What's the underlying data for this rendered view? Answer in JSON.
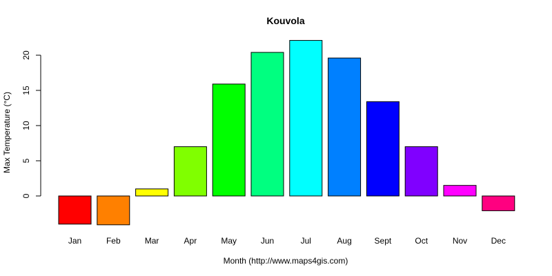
{
  "chart_data": {
    "type": "bar",
    "title": "Kouvola",
    "xlabel": "Month (http://www.maps4gis.com)",
    "ylabel": "Max Temperature (°C)",
    "categories": [
      "Jan",
      "Feb",
      "Mar",
      "Apr",
      "May",
      "Jun",
      "Jul",
      "Aug",
      "Sept",
      "Oct",
      "Nov",
      "Dec"
    ],
    "values": [
      -4.0,
      -4.1,
      1.0,
      7.0,
      15.9,
      20.4,
      22.1,
      19.6,
      13.4,
      7.0,
      1.5,
      -2.1
    ],
    "colors": [
      "#FF0000",
      "#FF8000",
      "#FFFF00",
      "#80FF00",
      "#00FF00",
      "#00FF80",
      "#00FFFF",
      "#0080FF",
      "#0000FF",
      "#8000FF",
      "#FF00FF",
      "#FF0080"
    ],
    "yticks": [
      0,
      5,
      10,
      15,
      20
    ],
    "ylim": [
      -4.5,
      22.5
    ],
    "grid": false,
    "legend": null
  }
}
